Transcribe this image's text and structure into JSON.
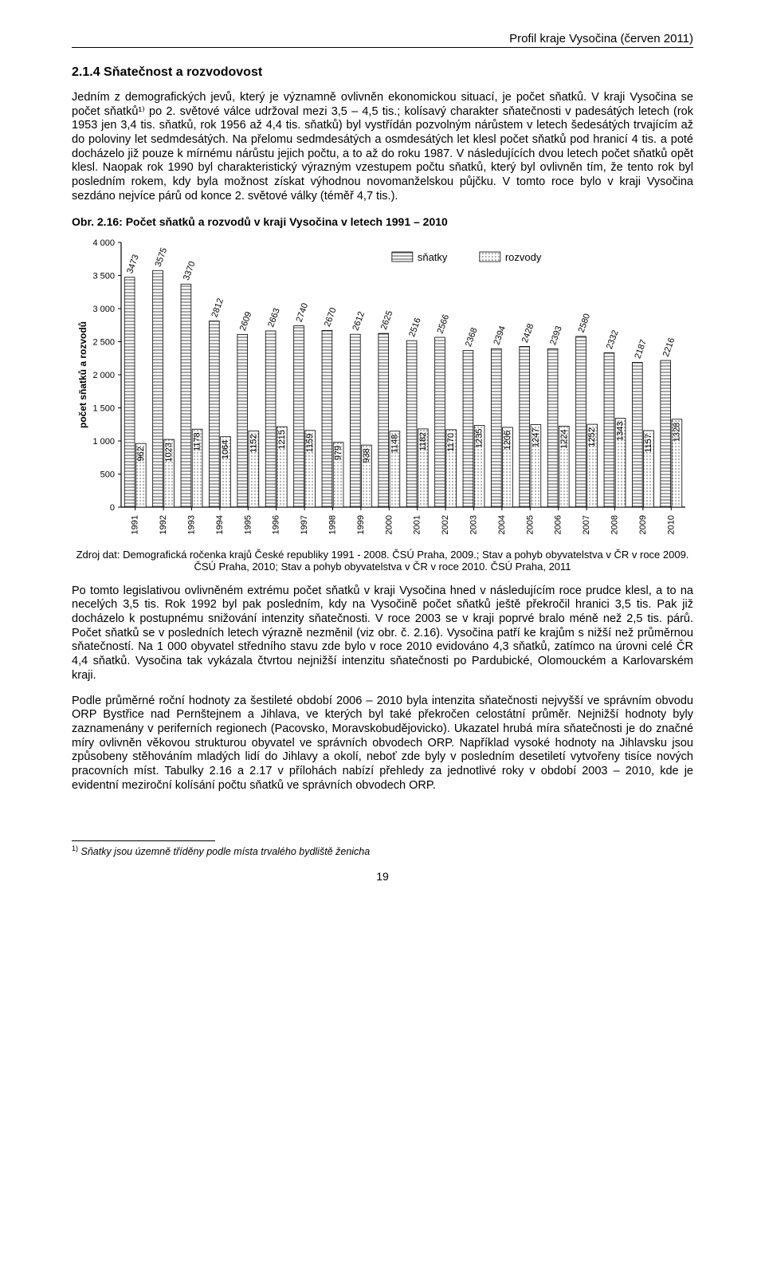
{
  "header": "Profil kraje Vysočina (červen 2011)",
  "section_title": "2.1.4 Sňatečnost a rozvodovost",
  "para1": "Jedním z demografických jevů, který je významně ovlivněn ekonomickou situací, je počet sňatků. V kraji Vysočina se počet sňatků¹⁾ po 2. světové válce udržoval mezi 3,5 – 4,5 tis.; kolísavý charakter sňatečnosti v padesátých letech (rok 1953 jen 3,4 tis. sňatků, rok 1956 až 4,4 tis. sňatků) byl vystřídán pozvolným nárůstem v letech šedesátých trvajícím až do poloviny let sedmdesátých. Na přelomu sedmdesátých a osmdesátých let klesl počet sňatků pod hranicí 4 tis. a poté docházelo již pouze k mírnému nárůstu jejich počtu, a to až do roku 1987. V následujících dvou letech počet sňatků opět klesl. Naopak rok 1990 byl charakteristický výrazným vzestupem počtu sňatků, který byl ovlivněn tím, že tento rok byl posledním rokem, kdy byla možnost získat výhodnou novomanželskou půjčku. V tomto roce bylo v kraji Vysočina sezdáno nejvíce párů od konce 2. světové války (téměř 4,7 tis.).",
  "chart_caption": "Obr. 2.16: Počet sňatků a rozvodů v kraji Vysočina v letech 1991 – 2010",
  "chart": {
    "type": "grouped-bar",
    "y_label": "počet sňatků a rozvodů",
    "legend": {
      "snatky": "sňatky",
      "rozvody": "rozvody"
    },
    "y_ticks": [
      0,
      500,
      1000,
      1500,
      2000,
      2500,
      3000,
      3500,
      4000
    ],
    "ylim_max": 4000,
    "years": [
      1991,
      1992,
      1993,
      1994,
      1995,
      1996,
      1997,
      1998,
      1999,
      2000,
      2001,
      2002,
      2003,
      2004,
      2005,
      2006,
      2007,
      2008,
      2009,
      2010
    ],
    "snatky": [
      3473,
      3575,
      3370,
      2812,
      2609,
      2663,
      2740,
      2670,
      2612,
      2625,
      2516,
      2566,
      2368,
      2394,
      2428,
      2393,
      2580,
      2332,
      2187,
      2216
    ],
    "rozvody": [
      962,
      1023,
      1178,
      1064,
      1152,
      1215,
      1159,
      979,
      938,
      1148,
      1182,
      1170,
      1235,
      1206,
      1247,
      1224,
      1252,
      1343,
      1157,
      1328
    ],
    "colors": {
      "snatky_fill": "#ffffff",
      "snatky_stroke": "#000000",
      "snatky_pattern": "h-lines",
      "rozvody_fill": "#ffffff",
      "rozvody_stroke": "#000000",
      "rozvody_pattern": "dots",
      "axis": "#000000",
      "text": "#000000"
    },
    "fontsize": {
      "axis_label": 12,
      "ticks": 11,
      "bar_label": 11,
      "legend": 13
    }
  },
  "source": "Zdroj dat: Demografická ročenka krajů České republiky 1991 - 2008. ČSÚ Praha, 2009.; Stav a pohyb obyvatelstva v ČR v roce 2009. ČSÚ Praha, 2010; Stav a pohyb obyvatelstva v ČR v roce 2010. ČSÚ Praha, 2011",
  "para2": "Po tomto legislativou ovlivněném extrému počet sňatků v kraji Vysočina hned v následujícím roce prudce klesl, a to na necelých 3,5 tis. Rok 1992 byl pak posledním, kdy na Vysočině počet sňatků ještě překročil hranici 3,5 tis. Pak již docházelo k postupnému snižování intenzity sňatečnosti. V roce 2003 se v kraji poprvé bralo méně než 2,5 tis. párů. Počet sňatků se v posledních letech výrazně nezměnil (viz obr. č. 2.16). Vysočina patří ke krajům s nižší než průměrnou sňatečností. Na 1 000 obyvatel středního stavu zde bylo v roce 2010 evidováno 4,3 sňatků, zatímco na úrovni celé ČR 4,4 sňatků. Vysočina tak vykázala čtvrtou nejnižší intenzitu sňatečnosti po Pardubické, Olomouckém a Karlovarském kraji.",
  "para3": "Podle průměrné roční hodnoty za šestileté období 2006 – 2010 byla intenzita sňatečnosti nejvyšší ve správním obvodu ORP Bystřice nad Pernštejnem a Jihlava, ve kterých byl také překročen celostátní průměr. Nejnižší hodnoty byly zaznamenány v periferních regionech (Pacovsko, Moravskobudějovicko). Ukazatel hrubá míra sňatečnosti je do značné míry ovlivněn věkovou strukturou obyvatel ve správních obvodech ORP. Například vysoké hodnoty na Jihlavsku jsou způsobeny stěhováním mladých lidí do Jihlavy a okolí, neboť zde byly v posledním desetiletí vytvořeny tisíce nových pracovních míst. Tabulky 2.16 a 2.17 v přílohách nabízí přehledy za jednotlivé roky v období 2003 – 2010, kde je evidentní meziroční kolísání počtu sňatků ve správních obvodech ORP.",
  "footnote": "Sňatky jsou územně tříděny podle místa trvalého bydliště ženicha",
  "footnote_marker": "1)",
  "page_number": "19"
}
